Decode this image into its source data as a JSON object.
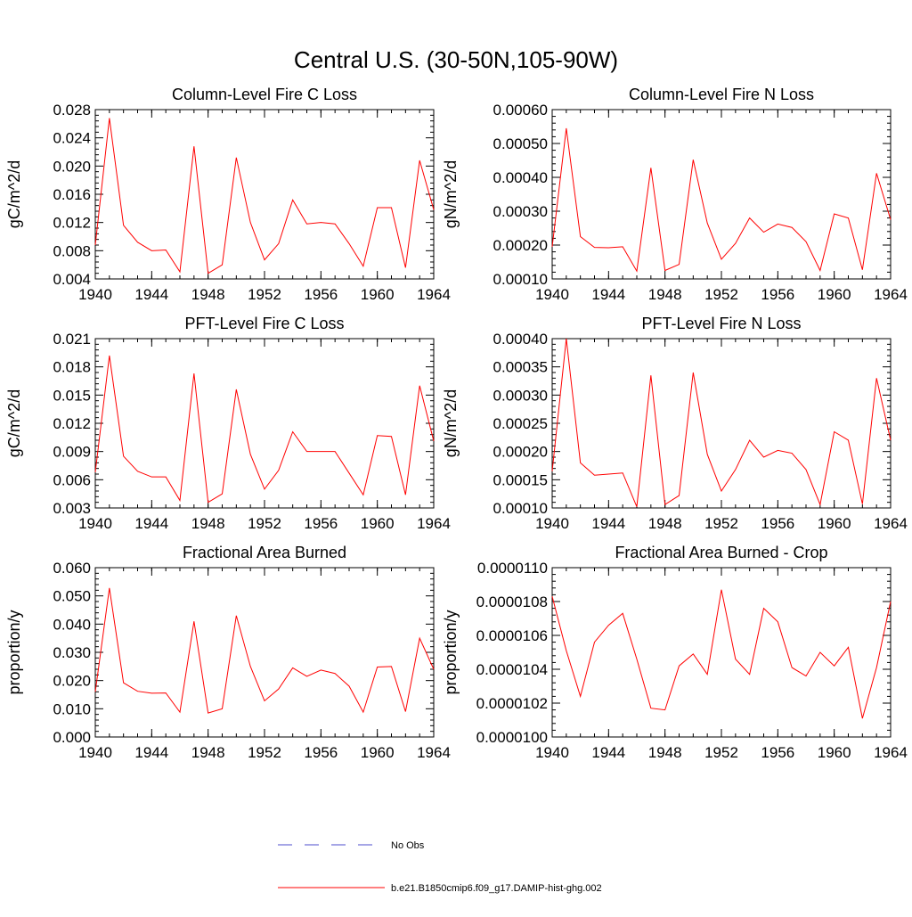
{
  "figure": {
    "title": "Central U.S. (30-50N,105-90W)"
  },
  "legend": {
    "items": [
      {
        "label": "No Obs",
        "color": "#4d4dcc",
        "dashed": true
      },
      {
        "label": "b.e21.B1850cmip6.f09_g17.DAMIP-hist-ghg.002",
        "color": "#ff0000",
        "dashed": false
      }
    ]
  },
  "chart_data": [
    {
      "type": "line",
      "title": "Column-Level Fire C Loss",
      "ylabel": "gC/m^2/d",
      "xlim": [
        1940,
        1964
      ],
      "ylim": [
        0.004,
        0.028
      ],
      "xticks": [
        1940,
        1944,
        1948,
        1952,
        1956,
        1960,
        1964
      ],
      "xtick_labels": [
        "1940",
        "1944",
        "1948",
        "1952",
        "1956",
        "1960",
        "1964"
      ],
      "yticks": [
        0.004,
        0.008,
        0.012,
        0.016,
        0.02,
        0.024,
        0.028
      ],
      "ytick_labels": [
        "0.004",
        "0.008",
        "0.012",
        "0.016",
        "0.020",
        "0.024",
        "0.028"
      ],
      "series": [
        {
          "color": "#ff0000",
          "x": [
            1940,
            1941,
            1942,
            1943,
            1944,
            1945,
            1946,
            1947,
            1948,
            1949,
            1950,
            1951,
            1952,
            1953,
            1954,
            1955,
            1956,
            1957,
            1958,
            1959,
            1960,
            1961,
            1962,
            1963,
            1964
          ],
          "y": [
            0.0088,
            0.0268,
            0.0116,
            0.0092,
            0.008,
            0.0081,
            0.005,
            0.0228,
            0.0048,
            0.006,
            0.0212,
            0.012,
            0.0067,
            0.009,
            0.0152,
            0.0118,
            0.012,
            0.0118,
            0.009,
            0.0058,
            0.0141,
            0.0141,
            0.0056,
            0.0208,
            0.0138
          ]
        }
      ]
    },
    {
      "type": "line",
      "title": "Column-Level Fire N Loss",
      "ylabel": "gN/m^2/d",
      "xlim": [
        1940,
        1964
      ],
      "ylim": [
        0.0001,
        0.0006
      ],
      "xticks": [
        1940,
        1944,
        1948,
        1952,
        1956,
        1960,
        1964
      ],
      "xtick_labels": [
        "1940",
        "1944",
        "1948",
        "1952",
        "1956",
        "1960",
        "1964"
      ],
      "yticks": [
        0.0001,
        0.0002,
        0.0003,
        0.0004,
        0.0005,
        0.0006
      ],
      "ytick_labels": [
        "0.00010",
        "0.00020",
        "0.00030",
        "0.00040",
        "0.00050",
        "0.00060"
      ],
      "series": [
        {
          "color": "#ff0000",
          "x": [
            1940,
            1941,
            1942,
            1943,
            1944,
            1945,
            1946,
            1947,
            1948,
            1949,
            1950,
            1951,
            1952,
            1953,
            1954,
            1955,
            1956,
            1957,
            1958,
            1959,
            1960,
            1961,
            1962,
            1963,
            1964
          ],
          "y": [
            0.000195,
            0.000545,
            0.000225,
            0.000193,
            0.000192,
            0.000195,
            0.000123,
            0.000428,
            0.000125,
            0.000143,
            0.000452,
            0.000265,
            0.000158,
            0.000205,
            0.00028,
            0.000238,
            0.000262,
            0.000252,
            0.00021,
            0.000125,
            0.000292,
            0.00028,
            0.000127,
            0.000412,
            0.000275
          ]
        }
      ]
    },
    {
      "type": "line",
      "title": "PFT-Level Fire C Loss",
      "ylabel": "gC/m^2/d",
      "xlim": [
        1940,
        1964
      ],
      "ylim": [
        0.003,
        0.021
      ],
      "xticks": [
        1940,
        1944,
        1948,
        1952,
        1956,
        1960,
        1964
      ],
      "xtick_labels": [
        "1940",
        "1944",
        "1948",
        "1952",
        "1956",
        "1960",
        "1964"
      ],
      "yticks": [
        0.003,
        0.006,
        0.009,
        0.012,
        0.015,
        0.018,
        0.021
      ],
      "ytick_labels": [
        "0.003",
        "0.006",
        "0.009",
        "0.012",
        "0.015",
        "0.018",
        "0.021"
      ],
      "series": [
        {
          "color": "#ff0000",
          "x": [
            1940,
            1941,
            1942,
            1943,
            1944,
            1945,
            1946,
            1947,
            1948,
            1949,
            1950,
            1951,
            1952,
            1953,
            1954,
            1955,
            1956,
            1957,
            1958,
            1959,
            1960,
            1961,
            1962,
            1963,
            1964
          ],
          "y": [
            0.0068,
            0.0192,
            0.0085,
            0.0069,
            0.0063,
            0.0063,
            0.0038,
            0.0173,
            0.0036,
            0.0045,
            0.0156,
            0.0087,
            0.005,
            0.007,
            0.0111,
            0.009,
            0.009,
            0.009,
            0.0067,
            0.0044,
            0.0107,
            0.0106,
            0.0044,
            0.016,
            0.0101
          ]
        }
      ]
    },
    {
      "type": "line",
      "title": "PFT-Level Fire N Loss",
      "ylabel": "gN/m^2/d",
      "xlim": [
        1940,
        1964
      ],
      "ylim": [
        0.0001,
        0.0004
      ],
      "xticks": [
        1940,
        1944,
        1948,
        1952,
        1956,
        1960,
        1964
      ],
      "xtick_labels": [
        "1940",
        "1944",
        "1948",
        "1952",
        "1956",
        "1960",
        "1964"
      ],
      "yticks": [
        0.0001,
        0.00015,
        0.0002,
        0.00025,
        0.0003,
        0.00035,
        0.0004
      ],
      "ytick_labels": [
        "0.00010",
        "0.00015",
        "0.00020",
        "0.00025",
        "0.00030",
        "0.00035",
        "0.00040"
      ],
      "series": [
        {
          "color": "#ff0000",
          "x": [
            1940,
            1941,
            1942,
            1943,
            1944,
            1945,
            1946,
            1947,
            1948,
            1949,
            1950,
            1951,
            1952,
            1953,
            1954,
            1955,
            1956,
            1957,
            1958,
            1959,
            1960,
            1961,
            1962,
            1963,
            1964
          ],
          "y": [
            0.000165,
            0.0004,
            0.00018,
            0.000158,
            0.00016,
            0.000162,
            0.000102,
            0.000335,
            0.000106,
            0.000122,
            0.00034,
            0.000195,
            0.00013,
            0.000168,
            0.00022,
            0.00019,
            0.000202,
            0.000197,
            0.000168,
            0.000106,
            0.000235,
            0.00022,
            0.000107,
            0.00033,
            0.00022
          ]
        }
      ]
    },
    {
      "type": "line",
      "title": "Fractional Area Burned",
      "ylabel": "proportion/y",
      "xlim": [
        1940,
        1964
      ],
      "ylim": [
        0.0,
        0.06
      ],
      "xticks": [
        1940,
        1944,
        1948,
        1952,
        1956,
        1960,
        1964
      ],
      "xtick_labels": [
        "1940",
        "1944",
        "1948",
        "1952",
        "1956",
        "1960",
        "1964"
      ],
      "yticks": [
        0.0,
        0.01,
        0.02,
        0.03,
        0.04,
        0.05,
        0.06
      ],
      "ytick_labels": [
        "0.000",
        "0.010",
        "0.020",
        "0.030",
        "0.040",
        "0.050",
        "0.060"
      ],
      "series": [
        {
          "color": "#ff0000",
          "x": [
            1940,
            1941,
            1942,
            1943,
            1944,
            1945,
            1946,
            1947,
            1948,
            1949,
            1950,
            1951,
            1952,
            1953,
            1954,
            1955,
            1956,
            1957,
            1958,
            1959,
            1960,
            1961,
            1962,
            1963,
            1964
          ],
          "y": [
            0.016,
            0.0528,
            0.0192,
            0.0162,
            0.0155,
            0.0156,
            0.0088,
            0.041,
            0.0085,
            0.01,
            0.043,
            0.025,
            0.0128,
            0.017,
            0.0245,
            0.0215,
            0.0237,
            0.0225,
            0.018,
            0.0088,
            0.0248,
            0.025,
            0.009,
            0.035,
            0.024
          ]
        }
      ]
    },
    {
      "type": "line",
      "title": "Fractional Area Burned - Crop",
      "ylabel": "proportion/y",
      "xlim": [
        1940,
        1964
      ],
      "ylim": [
        1e-05,
        1.1e-05
      ],
      "xticks": [
        1940,
        1944,
        1948,
        1952,
        1956,
        1960,
        1964
      ],
      "xtick_labels": [
        "1940",
        "1944",
        "1948",
        "1952",
        "1956",
        "1960",
        "1964"
      ],
      "yticks": [
        1e-05,
        1.02e-05,
        1.04e-05,
        1.06e-05,
        1.08e-05,
        1.1e-05
      ],
      "ytick_labels": [
        "0.0000100",
        "0.0000102",
        "0.0000104",
        "0.0000106",
        "0.0000108",
        "0.0000110"
      ],
      "series": [
        {
          "color": "#ff0000",
          "x": [
            1940,
            1941,
            1942,
            1943,
            1944,
            1945,
            1946,
            1947,
            1948,
            1949,
            1950,
            1951,
            1952,
            1953,
            1954,
            1955,
            1956,
            1957,
            1958,
            1959,
            1960,
            1961,
            1962,
            1963,
            1964
          ],
          "y": [
            1.083e-05,
            1.051e-05,
            1.024e-05,
            1.056e-05,
            1.066e-05,
            1.073e-05,
            1.046e-05,
            1.017e-05,
            1.016e-05,
            1.042e-05,
            1.049e-05,
            1.037e-05,
            1.087e-05,
            1.046e-05,
            1.037e-05,
            1.076e-05,
            1.068e-05,
            1.041e-05,
            1.036e-05,
            1.05e-05,
            1.042e-05,
            1.053e-05,
            1.011e-05,
            1.041e-05,
            1.08e-05
          ]
        }
      ]
    }
  ]
}
